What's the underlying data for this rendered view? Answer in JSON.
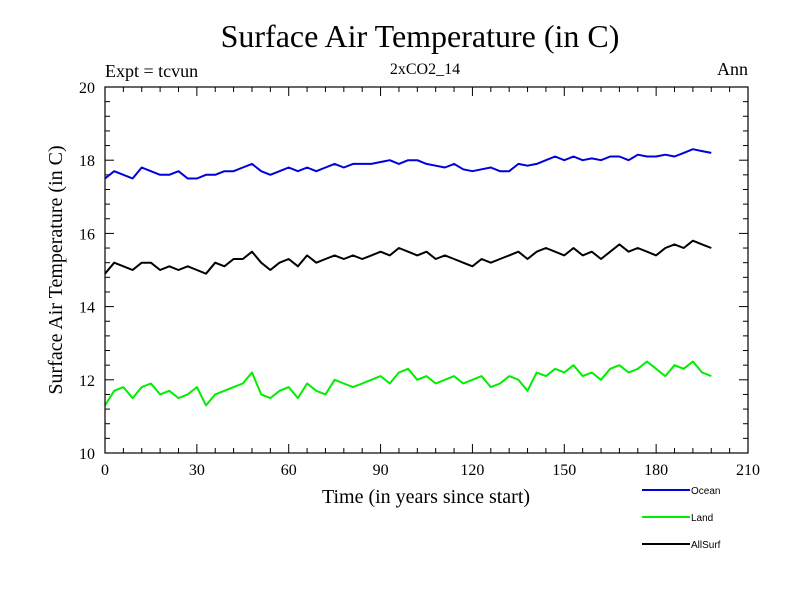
{
  "chart_data": {
    "type": "line",
    "title": "Surface Air Temperature (in C)",
    "subtitle": "2xCO2_14",
    "top_left_label": "Expt = tcvun",
    "top_right_label": "Ann",
    "xlabel": "Time (in years since start)",
    "ylabel": "Surface Air Temperature (in C)",
    "xlim": [
      0,
      210
    ],
    "ylim": [
      10,
      20
    ],
    "xticks": [
      0,
      30,
      60,
      90,
      120,
      150,
      180,
      210
    ],
    "yticks": [
      10,
      12,
      14,
      16,
      18,
      20
    ],
    "grid": false,
    "legend_position": "bottom-right, below plot",
    "series": [
      {
        "name": "Ocean",
        "color": "#0000dd",
        "x": [
          0,
          3,
          6,
          9,
          12,
          15,
          18,
          21,
          24,
          27,
          30,
          33,
          36,
          39,
          42,
          45,
          48,
          51,
          54,
          57,
          60,
          63,
          66,
          69,
          72,
          75,
          78,
          81,
          84,
          87,
          90,
          93,
          96,
          99,
          102,
          105,
          108,
          111,
          114,
          117,
          120,
          123,
          126,
          129,
          132,
          135,
          138,
          141,
          144,
          147,
          150,
          153,
          156,
          159,
          162,
          165,
          168,
          171,
          174,
          177,
          180,
          183,
          186,
          189,
          192,
          195,
          198
        ],
        "y": [
          17.5,
          17.7,
          17.6,
          17.5,
          17.8,
          17.7,
          17.6,
          17.6,
          17.7,
          17.5,
          17.5,
          17.6,
          17.6,
          17.7,
          17.7,
          17.8,
          17.9,
          17.7,
          17.6,
          17.7,
          17.8,
          17.7,
          17.8,
          17.7,
          17.8,
          17.9,
          17.8,
          17.9,
          17.9,
          17.9,
          17.95,
          18.0,
          17.9,
          18.0,
          18.0,
          17.9,
          17.85,
          17.8,
          17.9,
          17.75,
          17.7,
          17.75,
          17.8,
          17.7,
          17.7,
          17.9,
          17.85,
          17.9,
          18.0,
          18.1,
          18.0,
          18.1,
          18.0,
          18.05,
          18.0,
          18.1,
          18.1,
          18.0,
          18.15,
          18.1,
          18.1,
          18.15,
          18.1,
          18.2,
          18.3,
          18.25,
          18.2
        ]
      },
      {
        "name": "Land",
        "color": "#00ee00",
        "x": [
          0,
          3,
          6,
          9,
          12,
          15,
          18,
          21,
          24,
          27,
          30,
          33,
          36,
          39,
          42,
          45,
          48,
          51,
          54,
          57,
          60,
          63,
          66,
          69,
          72,
          75,
          78,
          81,
          84,
          87,
          90,
          93,
          96,
          99,
          102,
          105,
          108,
          111,
          114,
          117,
          120,
          123,
          126,
          129,
          132,
          135,
          138,
          141,
          144,
          147,
          150,
          153,
          156,
          159,
          162,
          165,
          168,
          171,
          174,
          177,
          180,
          183,
          186,
          189,
          192,
          195,
          198
        ],
        "y": [
          11.3,
          11.7,
          11.8,
          11.5,
          11.8,
          11.9,
          11.6,
          11.7,
          11.5,
          11.6,
          11.8,
          11.3,
          11.6,
          11.7,
          11.8,
          11.9,
          12.2,
          11.6,
          11.5,
          11.7,
          11.8,
          11.5,
          11.9,
          11.7,
          11.6,
          12.0,
          11.9,
          11.8,
          11.9,
          12.0,
          12.1,
          11.9,
          12.2,
          12.3,
          12.0,
          12.1,
          11.9,
          12.0,
          12.1,
          11.9,
          12.0,
          12.1,
          11.8,
          11.9,
          12.1,
          12.0,
          11.7,
          12.2,
          12.1,
          12.3,
          12.2,
          12.4,
          12.1,
          12.2,
          12.0,
          12.3,
          12.4,
          12.2,
          12.3,
          12.5,
          12.3,
          12.1,
          12.4,
          12.3,
          12.5,
          12.2,
          12.1
        ]
      },
      {
        "name": "AllSurf",
        "color": "#000000",
        "x": [
          0,
          3,
          6,
          9,
          12,
          15,
          18,
          21,
          24,
          27,
          30,
          33,
          36,
          39,
          42,
          45,
          48,
          51,
          54,
          57,
          60,
          63,
          66,
          69,
          72,
          75,
          78,
          81,
          84,
          87,
          90,
          93,
          96,
          99,
          102,
          105,
          108,
          111,
          114,
          117,
          120,
          123,
          126,
          129,
          132,
          135,
          138,
          141,
          144,
          147,
          150,
          153,
          156,
          159,
          162,
          165,
          168,
          171,
          174,
          177,
          180,
          183,
          186,
          189,
          192,
          195,
          198
        ],
        "y": [
          14.9,
          15.2,
          15.1,
          15.0,
          15.2,
          15.2,
          15.0,
          15.1,
          15.0,
          15.1,
          15.0,
          14.9,
          15.2,
          15.1,
          15.3,
          15.3,
          15.5,
          15.2,
          15.0,
          15.2,
          15.3,
          15.1,
          15.4,
          15.2,
          15.3,
          15.4,
          15.3,
          15.4,
          15.3,
          15.4,
          15.5,
          15.4,
          15.6,
          15.5,
          15.4,
          15.5,
          15.3,
          15.4,
          15.3,
          15.2,
          15.1,
          15.3,
          15.2,
          15.3,
          15.4,
          15.5,
          15.3,
          15.5,
          15.6,
          15.5,
          15.4,
          15.6,
          15.4,
          15.5,
          15.3,
          15.5,
          15.7,
          15.5,
          15.6,
          15.5,
          15.4,
          15.6,
          15.7,
          15.6,
          15.8,
          15.7,
          15.6
        ]
      }
    ]
  }
}
